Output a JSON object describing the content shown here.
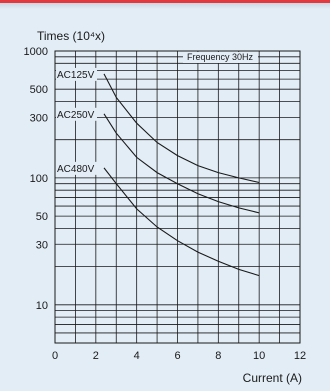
{
  "chart_data": {
    "type": "line",
    "ylabel": "Times (10⁴x)",
    "xlabel": "Current (A)",
    "legend": "Frequency 30Hz",
    "xlim": [
      0,
      12
    ],
    "ylim": [
      5,
      1000
    ],
    "yscale": "log",
    "grid": true,
    "x_ticks": [
      "0",
      "2",
      "4",
      "6",
      "8",
      "10",
      "12"
    ],
    "y_ticks": [
      "1000",
      "500",
      "300",
      "100",
      "50",
      "30",
      "10"
    ],
    "y_tick_values": [
      1000,
      500,
      300,
      100,
      50,
      30,
      10
    ],
    "series": [
      {
        "name": "AC125V",
        "x": [
          2.4,
          3,
          4,
          5,
          6,
          7,
          8,
          9,
          10
        ],
        "y": [
          660,
          430,
          270,
          190,
          150,
          125,
          110,
          100,
          92
        ]
      },
      {
        "name": "AC250V",
        "x": [
          2.4,
          3,
          4,
          5,
          6,
          7,
          8,
          9,
          10
        ],
        "y": [
          320,
          225,
          145,
          110,
          90,
          75,
          65,
          58,
          53
        ]
      },
      {
        "name": "AC480V",
        "x": [
          2.4,
          3,
          4,
          5,
          6,
          7,
          8,
          9,
          10
        ],
        "y": [
          120,
          90,
          57,
          41,
          32,
          26,
          22,
          19,
          17
        ]
      }
    ]
  }
}
